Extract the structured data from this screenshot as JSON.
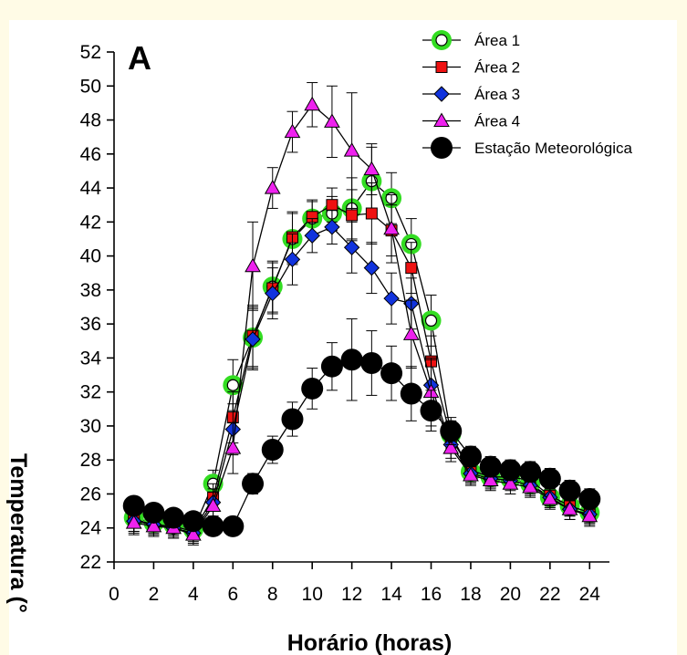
{
  "chart_data": {
    "type": "line",
    "panel_label": "A",
    "title": "",
    "xlabel": "Horário (horas)",
    "ylabel": "Temperatura (°",
    "xlim": [
      0,
      25
    ],
    "ylim": [
      22,
      52
    ],
    "xticks": [
      0,
      2,
      4,
      6,
      8,
      10,
      12,
      14,
      16,
      18,
      20,
      22,
      24
    ],
    "yticks": [
      22,
      24,
      26,
      28,
      30,
      32,
      34,
      36,
      38,
      40,
      42,
      44,
      46,
      48,
      50,
      52
    ],
    "legend_position": "top-right",
    "x": [
      1,
      2,
      3,
      4,
      5,
      6,
      7,
      8,
      9,
      10,
      11,
      12,
      13,
      14,
      15,
      16,
      17,
      18,
      19,
      20,
      21,
      22,
      23,
      24
    ],
    "series": [
      {
        "name": "Área 1",
        "marker": "open-circle",
        "fill": "#ffffff",
        "halo": "#33dd22",
        "values": [
          24.6,
          24.3,
          24.2,
          23.9,
          26.6,
          32.4,
          35.2,
          38.2,
          41.0,
          42.2,
          42.5,
          42.8,
          44.4,
          43.4,
          40.7,
          36.2,
          29.5,
          27.3,
          27.0,
          26.9,
          26.6,
          25.8,
          25.3,
          24.9
        ],
        "errors": [
          0.8,
          0.6,
          0.6,
          0.6,
          0.8,
          1.5,
          1.8,
          1.5,
          1.5,
          1.0,
          1.0,
          1.8,
          2.0,
          1.5,
          1.5,
          1.5,
          0.8,
          0.6,
          0.6,
          0.6,
          0.6,
          0.6,
          0.6,
          0.6
        ]
      },
      {
        "name": "Área 2",
        "marker": "square",
        "fill": "#ee1111",
        "values": [
          24.5,
          24.2,
          24.1,
          23.8,
          25.8,
          30.5,
          35.3,
          38.1,
          41.1,
          42.3,
          43.0,
          42.4,
          42.5,
          41.5,
          39.3,
          33.8,
          29.3,
          27.4,
          27.0,
          27.0,
          26.8,
          25.9,
          25.3,
          24.9
        ],
        "errors": [
          0.7,
          0.6,
          0.6,
          0.6,
          0.8,
          1.5,
          1.8,
          1.5,
          1.5,
          1.0,
          1.0,
          1.5,
          1.8,
          1.5,
          1.5,
          1.5,
          0.8,
          0.6,
          0.6,
          0.6,
          0.6,
          0.6,
          0.6,
          0.6
        ]
      },
      {
        "name": "Área 3",
        "marker": "diamond",
        "fill": "#1133dd",
        "values": [
          24.4,
          24.2,
          24.0,
          23.7,
          25.5,
          29.8,
          35.1,
          37.8,
          39.8,
          41.2,
          41.7,
          40.5,
          39.3,
          37.5,
          37.2,
          32.4,
          28.9,
          27.2,
          26.9,
          26.8,
          26.5,
          25.8,
          25.1,
          24.8
        ],
        "errors": [
          0.7,
          0.6,
          0.6,
          0.6,
          0.8,
          1.5,
          1.8,
          1.5,
          1.5,
          1.0,
          1.0,
          1.5,
          1.5,
          1.5,
          1.5,
          1.5,
          0.8,
          0.6,
          0.6,
          0.6,
          0.6,
          0.6,
          0.6,
          0.6
        ]
      },
      {
        "name": "Área 4",
        "marker": "triangle",
        "fill": "#ee22ee",
        "values": [
          24.3,
          24.1,
          24.0,
          23.6,
          25.3,
          28.7,
          39.4,
          44.0,
          47.3,
          48.9,
          47.9,
          46.2,
          45.1,
          41.6,
          35.4,
          32.0,
          28.7,
          27.1,
          26.8,
          26.6,
          26.4,
          25.7,
          25.1,
          24.7
        ],
        "errors": [
          0.7,
          0.6,
          0.6,
          0.6,
          0.8,
          1.5,
          2.6,
          1.2,
          1.2,
          1.3,
          2.1,
          3.4,
          1.5,
          2.0,
          2.0,
          2.0,
          0.8,
          0.6,
          0.6,
          0.6,
          0.6,
          0.6,
          0.6,
          0.6
        ]
      },
      {
        "name": "Estação Meteorológica",
        "marker": "big-circle",
        "fill": "#000000",
        "values": [
          25.3,
          24.9,
          24.6,
          24.4,
          24.1,
          24.1,
          26.6,
          28.6,
          30.4,
          32.2,
          33.5,
          33.9,
          33.7,
          33.1,
          31.9,
          30.9,
          29.7,
          28.2,
          27.6,
          27.4,
          27.3,
          26.9,
          26.2,
          25.7
        ],
        "errors": [
          0.5,
          0.5,
          0.5,
          0.5,
          0.5,
          0.5,
          0.6,
          0.8,
          1.0,
          1.2,
          1.4,
          2.4,
          1.9,
          1.6,
          1.6,
          1.2,
          0.8,
          0.6,
          0.6,
          0.6,
          0.6,
          0.6,
          0.6,
          0.6
        ]
      }
    ]
  }
}
